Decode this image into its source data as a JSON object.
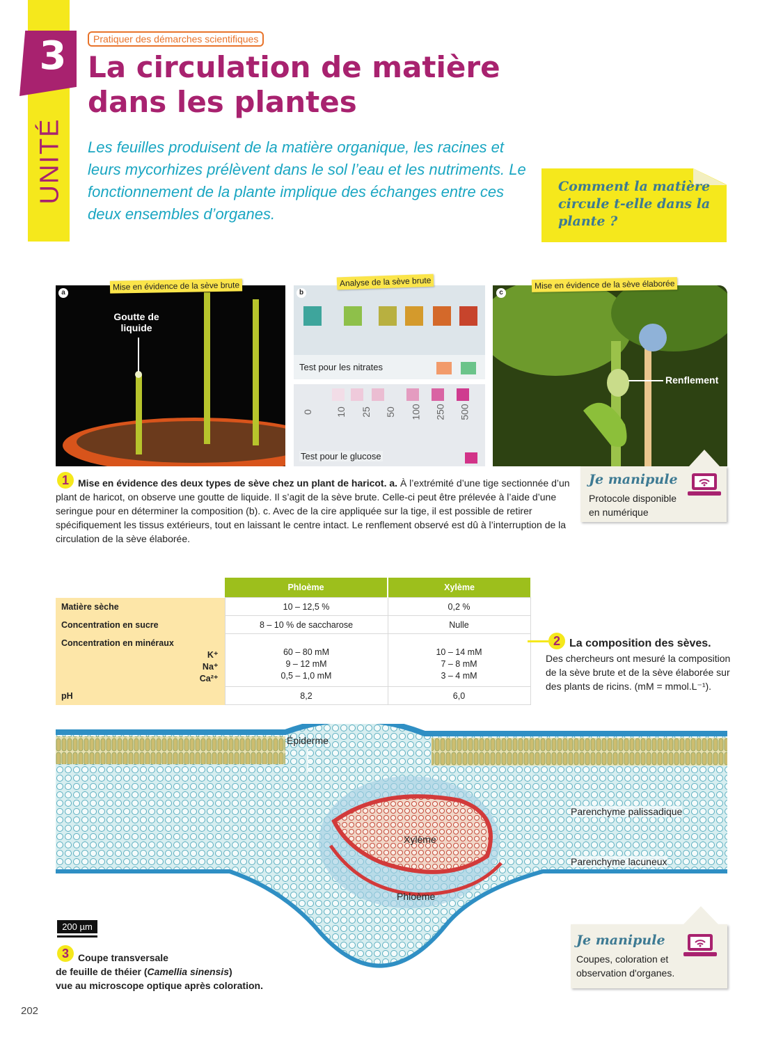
{
  "header": {
    "unit_number": "3",
    "unit_label": "UNITÉ",
    "kicker": "Pratiquer des démarches scientifiques",
    "title": "La circulation de matière dans les plantes",
    "intro": "Les feuilles produisent de la matière organique, les racines et leurs mycorhizes prélèvent dans le sol l’eau et les nutriments. Le fonctionnement de la plante implique des échanges entre ces deux ensembles d’organes.",
    "question": "Comment la matière circule t-elle dans la plante ?"
  },
  "doc1": {
    "photo_a": {
      "letter": "a",
      "tag": "Mise en évidence de la sève brute",
      "label": "Goutte de liquide"
    },
    "photo_b": {
      "letter": "b",
      "tag": "Analyse de la sève brute",
      "nitrate_label": "Test pour les nitrates",
      "glucose_label": "Test pour le glucose",
      "glucose_scale": [
        "0",
        "10",
        "25",
        "50",
        "100",
        "250",
        "500"
      ]
    },
    "photo_c": {
      "letter": "c",
      "tag": "Mise en évidence de la sève élaborée",
      "label": "Renflement"
    },
    "number": "1",
    "caption_bold": "Mise en évidence des deux types de sève chez un plant de haricot. a.",
    "caption_text": " À l’extrémité d’une tige sectionnée d’un plant de haricot, on observe une goutte de liquide. Il s’agit de la sève brute. Celle-ci peut être prélevée à l’aide d’une seringue pour en déterminer la composition (b). c. Avec de la cire appliquée sur la tige, il est possible de retirer spécifiquement les tissus extérieurs, tout en laissant le centre intact. Le renflement observé est dû à l’interruption de la circulation de la sève élaborée.",
    "manip": {
      "title": "Je manipule",
      "text": "Protocole disponible en numérique"
    }
  },
  "doc2": {
    "number": "2",
    "title": "La composition des sèves.",
    "text": "Des chercheurs ont mesuré la composition de la sève brute et de la sève élaborée sur des plants de ricins. (mM = mmol.L⁻¹).",
    "table": {
      "headers": [
        "Phloème",
        "Xylème"
      ],
      "rows": [
        {
          "label": "Matière sèche",
          "phloeme": "10 – 12,5 %",
          "xyleme": "0,2 %"
        },
        {
          "label": "Concentration en sucre",
          "phloeme": "8 – 10 % de saccharose",
          "xyleme": "Nulle"
        }
      ],
      "minerals": {
        "label": "Concentration en minéraux",
        "ions": [
          "K⁺",
          "Na⁺",
          "Ca²⁺"
        ],
        "phloeme": [
          "60 – 80 mM",
          "9 – 12 mM",
          "0,5 – 1,0 mM"
        ],
        "xyleme": [
          "10 – 14 mM",
          "7 – 8 mM",
          "3 – 4 mM"
        ]
      },
      "ph": {
        "label": "pH",
        "phloeme": "8,2",
        "xyleme": "6,0"
      }
    }
  },
  "doc3": {
    "labels": {
      "epiderme": "Épiderme",
      "palissadique": "Parenchyme palissadique",
      "xyleme": "Xylème",
      "lacuneux": "Parenchyme lacuneux",
      "phloeme": "Phloème"
    },
    "scale": "200 µm",
    "number": "3",
    "caption_line1": "Coupe transversale",
    "caption_line2_pre": "de feuille de théier (",
    "caption_species": "Camellia sinensis",
    "caption_line2_post": ")",
    "caption_line3": "vue au microscope optique après coloration.",
    "manip": {
      "title": "Je manipule",
      "text": "Coupes, coloration et observation d'organes."
    }
  },
  "footer": {
    "page_number": "202"
  },
  "colors": {
    "magenta": "#a8226f",
    "yellow": "#f5e81c",
    "cyan": "#1aa6c2",
    "green": "#9dbf1c",
    "orange": "#e8732a"
  }
}
